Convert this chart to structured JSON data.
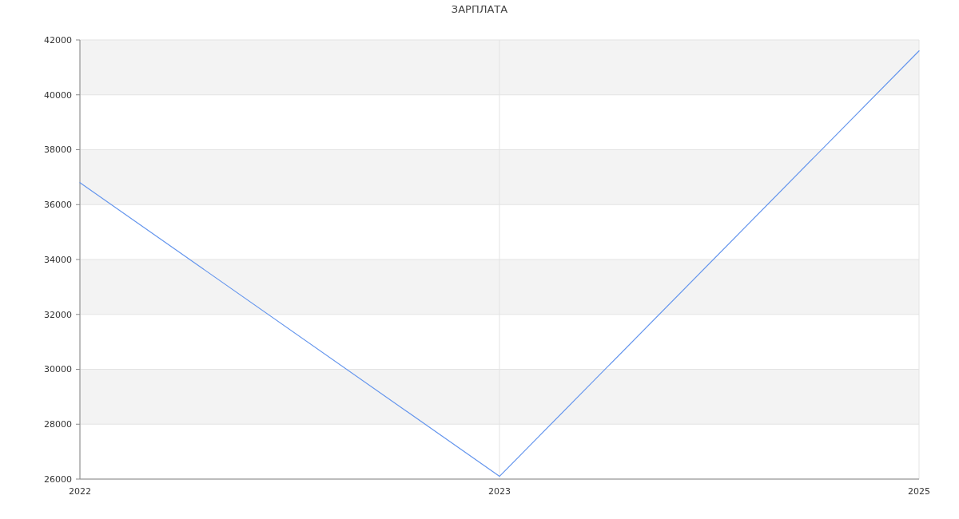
{
  "chart_data": {
    "type": "line",
    "title": "ЗАРПЛАТА",
    "categories": [
      "2022",
      "2023",
      "2025"
    ],
    "series": [
      {
        "color": "#6495ed",
        "values": [
          36800,
          26100,
          41600
        ]
      }
    ],
    "ylim": [
      26000,
      42000
    ],
    "yticks": [
      26000,
      28000,
      30000,
      32000,
      34000,
      36000,
      38000,
      40000,
      42000
    ],
    "grid": true,
    "marker": "none",
    "line_style": "solid"
  }
}
